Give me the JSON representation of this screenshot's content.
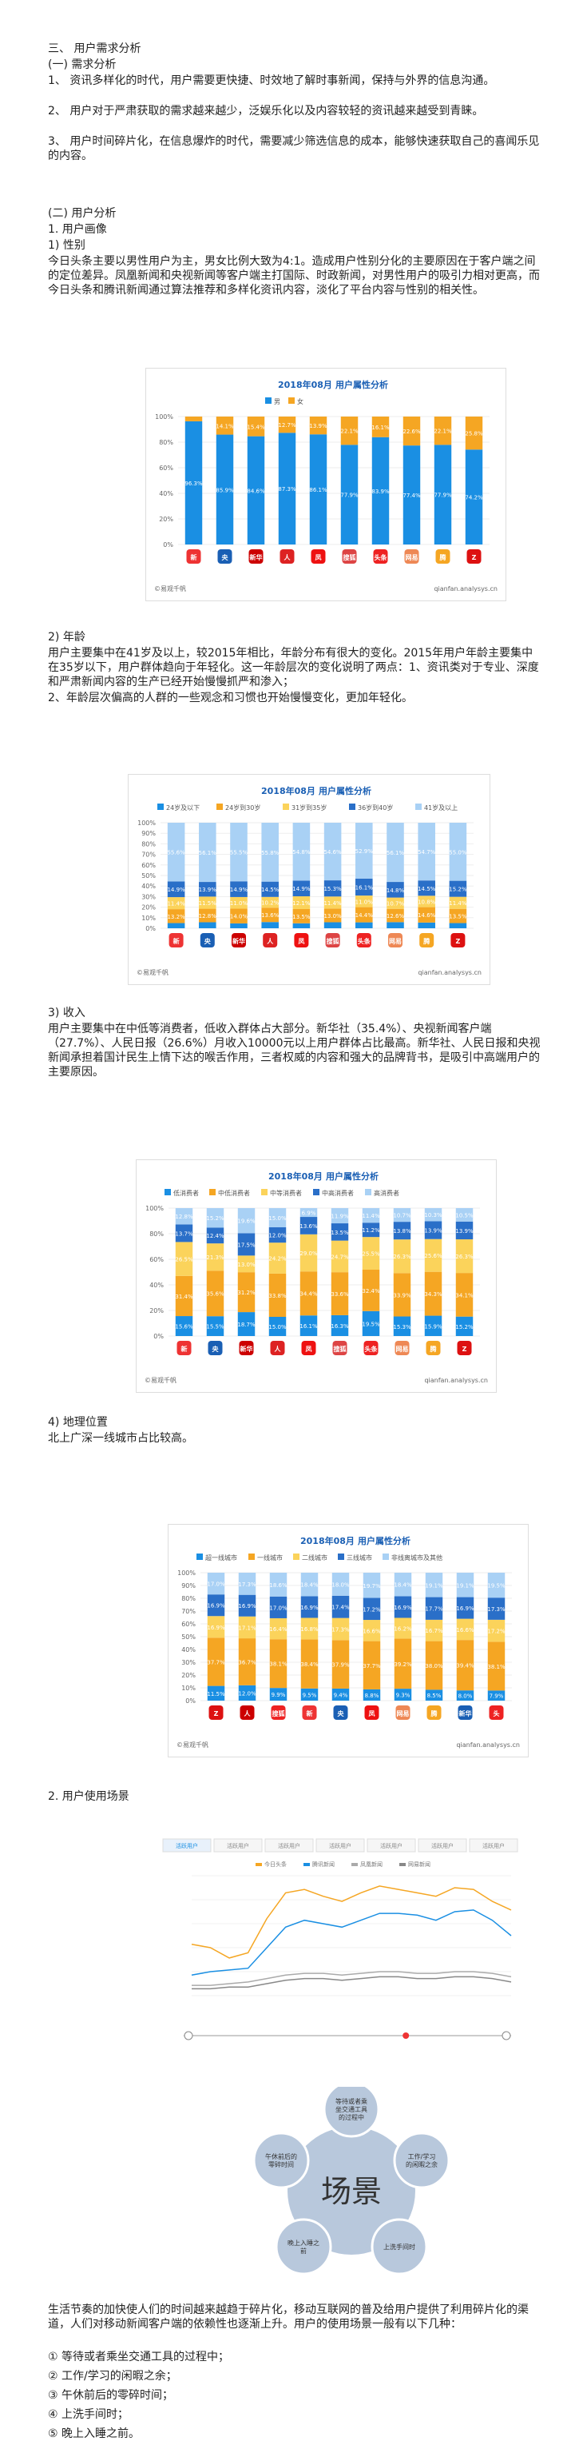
{
  "section3": {
    "title": "三、 用户需求分析",
    "sub1": "(一)  需求分析",
    "p1": "1、 资讯多样化的时代，用户需要更快捷、时效地了解时事新闻，保持与外界的信息沟通。",
    "p2": "2、 用户对于严肃获取的需求越来越少，泛娱乐化以及内容较轻的资讯越来越受到青睐。",
    "p3": "3、 用户时间碎片化，在信息爆炸的时代，需要减少筛选信息的成本，能够快速获取自己的喜闻乐见的内容。",
    "sub2": "(二)  用户分析",
    "portrait": "1.  用户画像",
    "gender_h": "1)  性别",
    "gender_p": "今日头条主要以男性用户为主，男女比例大致为4:1。造成用户性别分化的主要原因在于客户端之间的定位差异。凤凰新闻和央视新闻等客户端主打国际、时政新闻，对男性用户的吸引力相对更高，而今日头条和腾讯新闻通过算法推荐和多样化资讯内容，淡化了平台内容与性别的相关性。",
    "age_h": "2)  年龄",
    "age_p1": "用户主要集中在41岁及以上，较2015年相比，年龄分布有很大的变化。2015年用户年龄主要集中在35岁以下，用户群体趋向于年轻化。这一年龄层次的变化说明了两点：1、资讯类对于专业、深度和严肃新闻内容的生产已经开始慢慢抓严和渗入；",
    "age_p2": "2、年龄层次偏高的人群的一些观念和习惯也开始慢慢变化，更加年轻化。",
    "income_h": "3)  收入",
    "income_p": "用户主要集中在中低等消费者，低收入群体占大部分。新华社（35.4%）、央视新闻客户端（27.7%）、人民日报（26.6%）月收入10000元以上用户群体占比最高。新华社、人民日报和央视新闻承担着国计民生上情下达的喉舌作用，三者权威的内容和强大的品牌背书，是吸引中高端用户的主要原因。",
    "geo_h": "4)  地理位置",
    "geo_p": "北上广深一线城市占比较高。",
    "scene_h": "2.  用户使用场景",
    "scene_p": "生活节奏的加快使人们的时间越来越趋于碎片化，移动互联网的普及给用户提供了利用碎片化的渠道，人们对移动新闻客户端的依赖性也逐渐上升。用户的使用场景一般有以下几种：",
    "scenes": [
      "①  等待或者乘坐交通工具的过程中；",
      "②  工作/学习的闲暇之余；",
      "③  午休前后的零碎时间；",
      "④  上洗手间时；",
      "⑤  晚上入睡之前。"
    ]
  },
  "charts": {
    "title_prefix": "2018年08月",
    "title_main": "用户属性分析",
    "source_left": "©易观千帆",
    "source_right": "qianfan.analysys.cn",
    "apps1": [
      {
        "t": "新",
        "c": "#e33"
      },
      {
        "t": "央",
        "c": "#1a5fb4"
      },
      {
        "t": "新华",
        "c": "#c00"
      },
      {
        "t": "人",
        "c": "#d22"
      },
      {
        "t": "凤",
        "c": "#e11"
      },
      {
        "t": "搜狐",
        "c": "#d44"
      },
      {
        "t": "头条",
        "c": "#e22"
      },
      {
        "t": "网易",
        "c": "#e85"
      },
      {
        "t": "腾",
        "c": "#f5a623"
      },
      {
        "t": "Z",
        "c": "#d11"
      }
    ],
    "apps4": [
      {
        "t": "Z",
        "c": "#d11"
      },
      {
        "t": "人",
        "c": "#c00"
      },
      {
        "t": "搜狐",
        "c": "#e22"
      },
      {
        "t": "新",
        "c": "#e33"
      },
      {
        "t": "央",
        "c": "#1a5fb4"
      },
      {
        "t": "凤",
        "c": "#e11"
      },
      {
        "t": "网易",
        "c": "#e85"
      },
      {
        "t": "腾",
        "c": "#f5a623"
      },
      {
        "t": "新华",
        "c": "#1a5fb4"
      },
      {
        "t": "头",
        "c": "#e22"
      }
    ]
  },
  "chart_data": [
    {
      "type": "bar",
      "title": "用户属性分析",
      "subtitle": "2018年08月",
      "ylim": [
        0,
        100
      ],
      "yticks": [
        "0%",
        "20%",
        "40%",
        "60%",
        "80%",
        "100%"
      ],
      "colors": [
        "#1a8fe3",
        "#f5a623"
      ],
      "series": [
        {
          "name": "男",
          "values": [
            96.3,
            85.9,
            84.6,
            87.3,
            86.1,
            77.9,
            83.9,
            77.4,
            77.9,
            74.2
          ]
        },
        {
          "name": "女",
          "values": [
            3.7,
            14.1,
            15.4,
            12.7,
            13.9,
            22.1,
            16.1,
            22.6,
            22.1,
            25.8
          ]
        }
      ]
    },
    {
      "type": "bar",
      "title": "用户属性分析",
      "subtitle": "2018年08月",
      "ylim": [
        0,
        100
      ],
      "yticks": [
        "0%",
        "10%",
        "20%",
        "30%",
        "40%",
        "50%",
        "60%",
        "70%",
        "80%",
        "90%",
        "100%"
      ],
      "colors": [
        "#1a8fe3",
        "#f5a623",
        "#fbd35b",
        "#2a6fc8",
        "#a9d1f5"
      ],
      "series": [
        {
          "name": "24岁及以下",
          "values": [
            4.9,
            5.7,
            4.6,
            5.9,
            4.7,
            5.7,
            5.6,
            5.8,
            5.4,
            4.9
          ]
        },
        {
          "name": "24岁到30岁",
          "values": [
            13.2,
            12.8,
            14.0,
            13.6,
            13.5,
            13.0,
            14.4,
            12.6,
            14.6,
            13.5
          ]
        },
        {
          "name": "31岁到35岁",
          "values": [
            11.4,
            11.5,
            11.0,
            10.2,
            12.1,
            11.4,
            11.0,
            10.7,
            10.8,
            11.4
          ]
        },
        {
          "name": "36岁到40岁",
          "values": [
            14.9,
            13.9,
            14.9,
            14.5,
            14.9,
            15.3,
            16.1,
            14.8,
            14.5,
            15.2
          ]
        },
        {
          "name": "41岁及以上",
          "values": [
            55.6,
            56.1,
            55.5,
            55.8,
            54.8,
            54.6,
            52.9,
            56.1,
            54.7,
            55.0
          ]
        }
      ]
    },
    {
      "type": "bar",
      "title": "用户属性分析",
      "subtitle": "2018年08月",
      "ylim": [
        0,
        100
      ],
      "yticks": [
        "0%",
        "20%",
        "40%",
        "60%",
        "80%",
        "100%"
      ],
      "colors": [
        "#1a8fe3",
        "#f5a623",
        "#fbd35b",
        "#2a6fc8",
        "#a9d1f5"
      ],
      "series": [
        {
          "name": "低消费者",
          "values": [
            15.6,
            15.5,
            18.7,
            15.0,
            16.1,
            16.3,
            19.5,
            15.3,
            15.9,
            15.2
          ]
        },
        {
          "name": "中低消费者",
          "values": [
            31.4,
            35.6,
            31.2,
            33.8,
            34.4,
            33.6,
            32.4,
            33.9,
            34.3,
            34.1
          ]
        },
        {
          "name": "中等消费者",
          "values": [
            26.5,
            21.3,
            13.0,
            24.2,
            29.0,
            24.7,
            25.5,
            26.3,
            25.6,
            26.3
          ]
        },
        {
          "name": "中高消费者",
          "values": [
            13.7,
            12.4,
            17.5,
            12.0,
            13.6,
            13.5,
            11.2,
            13.8,
            13.9,
            13.9
          ]
        },
        {
          "name": "高消费者",
          "values": [
            12.8,
            15.2,
            19.6,
            15.0,
            6.9,
            11.9,
            11.4,
            10.7,
            10.3,
            10.5
          ]
        }
      ]
    },
    {
      "type": "bar",
      "title": "用户属性分析",
      "subtitle": "2018年08月",
      "ylim": [
        0,
        100
      ],
      "yticks": [
        "0%",
        "10%",
        "20%",
        "30%",
        "40%",
        "50%",
        "60%",
        "70%",
        "80%",
        "90%",
        "100%"
      ],
      "colors": [
        "#1a8fe3",
        "#f5a623",
        "#fbd35b",
        "#2a6fc8",
        "#a9d1f5"
      ],
      "series": [
        {
          "name": "超一线城市",
          "values": [
            11.5,
            12.0,
            9.9,
            9.5,
            9.4,
            8.8,
            9.3,
            8.5,
            8.0,
            7.9
          ]
        },
        {
          "name": "一线城市",
          "values": [
            37.7,
            36.7,
            38.1,
            38.4,
            37.9,
            37.7,
            39.2,
            38.0,
            39.4,
            38.1
          ]
        },
        {
          "name": "二线城市",
          "values": [
            16.9,
            17.1,
            16.4,
            16.8,
            17.3,
            16.6,
            16.2,
            16.7,
            16.6,
            17.2
          ]
        },
        {
          "name": "三线城市",
          "values": [
            16.9,
            16.9,
            17.0,
            16.9,
            17.4,
            17.2,
            16.9,
            17.7,
            16.9,
            17.3
          ]
        },
        {
          "name": "非线离城市及其他",
          "values": [
            17.0,
            17.3,
            18.6,
            18.4,
            18.0,
            19.7,
            18.4,
            19.1,
            19.1,
            19.5
          ]
        }
      ]
    },
    {
      "type": "line",
      "tabs": [
        "活跃用户",
        "活跃用户",
        "活跃用户",
        "活跃用户",
        "活跃用户",
        "活跃用户",
        "活跃用户"
      ],
      "series": [
        {
          "name": "今日头条",
          "color": "#f5a623",
          "values": [
            30,
            28,
            22,
            25,
            45,
            60,
            62,
            58,
            55,
            60,
            64,
            62,
            60,
            58,
            63,
            62,
            55,
            50
          ]
        },
        {
          "name": "腾讯新闻",
          "color": "#1a8fe3",
          "values": [
            12,
            14,
            15,
            16,
            28,
            40,
            44,
            42,
            40,
            44,
            48,
            48,
            47,
            44,
            49,
            50,
            44,
            35
          ]
        },
        {
          "name": "凤凰新闻",
          "color": "#aaa",
          "values": [
            6,
            6,
            7,
            8,
            10,
            12,
            13,
            13,
            12,
            13,
            14,
            14,
            13,
            13,
            14,
            14,
            13,
            11
          ]
        },
        {
          "name": "网易新闻",
          "color": "#888",
          "values": [
            4,
            4,
            5,
            5,
            7,
            9,
            10,
            10,
            9,
            10,
            11,
            11,
            10,
            10,
            11,
            11,
            10,
            8
          ]
        }
      ]
    }
  ],
  "diagram": {
    "center": "场景",
    "nodes": [
      "等待或者乘坐交通工具的过程中",
      "工作/学习的闲暇之余",
      "上洗手间时",
      "晚上入睡之前",
      "午休前后的零碎时间"
    ]
  }
}
